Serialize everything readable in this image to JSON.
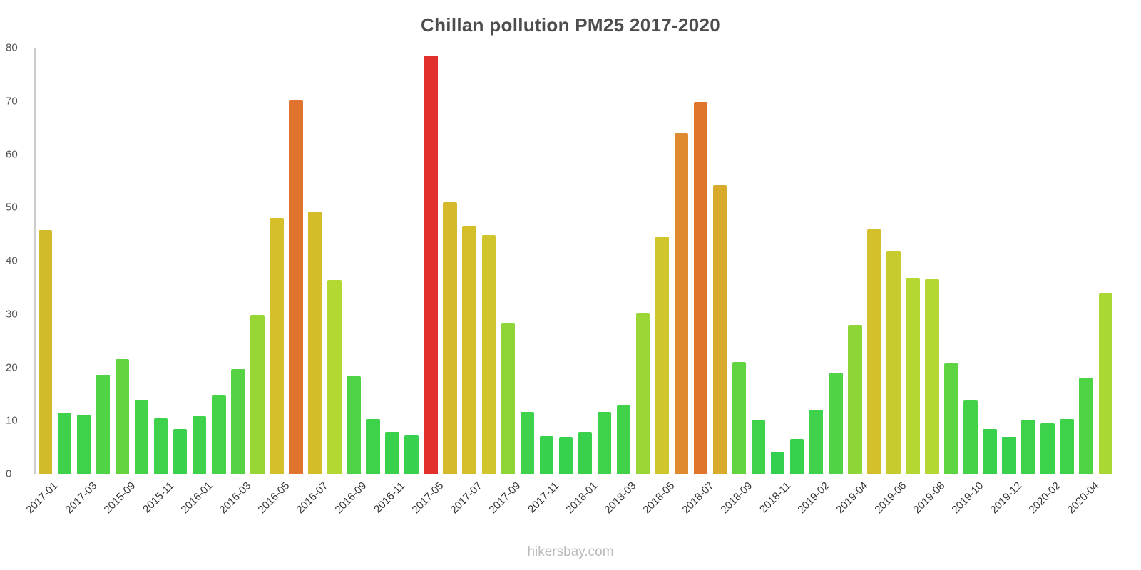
{
  "title": "Chillan pollution PM25 2017-2020",
  "footer": "hikersbay.com",
  "colors": {
    "axis_line": "#cccccc",
    "title_text": "#4d4d4d",
    "tick_text": "#555555",
    "xlabel_text": "#333333",
    "watermark_text": "#bbbbbb",
    "green": "#3ed24b",
    "yellow_green": "#aad733",
    "yellow": "#d5bf2a",
    "orange": "#e0742e",
    "red": "#e1302d"
  },
  "chart_data": {
    "type": "bar",
    "title": "Chillan pollution PM25 2017-2020",
    "xlabel": "",
    "ylabel": "",
    "ylim": [
      0,
      80
    ],
    "yticks": [
      0,
      10,
      20,
      30,
      40,
      50,
      60,
      70,
      80
    ],
    "grid": false,
    "legend": "none",
    "categories": [
      "2017-01",
      "2017-03",
      "2015-09",
      "2015-11",
      "2016-01",
      "2016-03",
      "2016-05",
      "2016-07",
      "2016-09",
      "2016-11",
      "2017-05",
      "2017-07",
      "2017-09",
      "2017-11",
      "2018-01",
      "2018-03",
      "2018-05",
      "2018-07",
      "2018-09",
      "2018-11",
      "2019-02",
      "2019-04",
      "2019-06",
      "2019-08",
      "2019-10",
      "2019-12",
      "2020-02",
      "2020-04"
    ],
    "bars": [
      {
        "label": "2017-01",
        "value": 45.7,
        "color": "#d2ba2b"
      },
      {
        "label": "",
        "value": 11.5,
        "color": "#3ed24b"
      },
      {
        "label": "2017-03",
        "value": 11.1,
        "color": "#3ed24b"
      },
      {
        "label": "",
        "value": 18.6,
        "color": "#50d345"
      },
      {
        "label": "2015-09",
        "value": 21.6,
        "color": "#65d441"
      },
      {
        "label": "",
        "value": 13.8,
        "color": "#44d249"
      },
      {
        "label": "2015-11",
        "value": 10.5,
        "color": "#3ed24b"
      },
      {
        "label": "",
        "value": 8.4,
        "color": "#39d14c"
      },
      {
        "label": "2016-01",
        "value": 10.8,
        "color": "#3ed24b"
      },
      {
        "label": "",
        "value": 14.7,
        "color": "#47d348"
      },
      {
        "label": "2016-03",
        "value": 19.7,
        "color": "#56d344"
      },
      {
        "label": "",
        "value": 29.8,
        "color": "#97d635"
      },
      {
        "label": "2016-05",
        "value": 48.1,
        "color": "#d5bf2a"
      },
      {
        "label": "",
        "value": 70.1,
        "color": "#e0742e"
      },
      {
        "label": "2016-07",
        "value": 49.2,
        "color": "#d5bd2a"
      },
      {
        "label": "",
        "value": 36.4,
        "color": "#b2d831"
      },
      {
        "label": "2016-09",
        "value": 18.4,
        "color": "#4fd346"
      },
      {
        "label": "",
        "value": 10.3,
        "color": "#3ed24b"
      },
      {
        "label": "2016-11",
        "value": 7.8,
        "color": "#39d14c"
      },
      {
        "label": "",
        "value": 7.2,
        "color": "#37d14d"
      },
      {
        "label": "2017-05",
        "value": 78.6,
        "color": "#e1302d"
      },
      {
        "label": "",
        "value": 51.0,
        "color": "#d6b92b"
      },
      {
        "label": "2017-07",
        "value": 46.5,
        "color": "#d4bf2a"
      },
      {
        "label": "",
        "value": 44.8,
        "color": "#d0c52c"
      },
      {
        "label": "2017-09",
        "value": 28.3,
        "color": "#8fd537"
      },
      {
        "label": "",
        "value": 11.7,
        "color": "#3fd24b"
      },
      {
        "label": "2017-11",
        "value": 7.1,
        "color": "#37d14d"
      },
      {
        "label": "",
        "value": 6.8,
        "color": "#36d14d"
      },
      {
        "label": "2018-01",
        "value": 7.7,
        "color": "#39d14c"
      },
      {
        "label": "",
        "value": 11.7,
        "color": "#3fd24b"
      },
      {
        "label": "2018-03",
        "value": 12.9,
        "color": "#42d24a"
      },
      {
        "label": "",
        "value": 30.2,
        "color": "#9ad635"
      },
      {
        "label": "2018-05",
        "value": 44.5,
        "color": "#cfc62c"
      },
      {
        "label": "",
        "value": 63.9,
        "color": "#df8a2f"
      },
      {
        "label": "2018-07",
        "value": 69.8,
        "color": "#e0752e"
      },
      {
        "label": "",
        "value": 54.2,
        "color": "#d9ab2d"
      },
      {
        "label": "2018-09",
        "value": 21.0,
        "color": "#61d442"
      },
      {
        "label": "",
        "value": 10.2,
        "color": "#3ed24b"
      },
      {
        "label": "2018-11",
        "value": 4.2,
        "color": "#32d04e"
      },
      {
        "label": "",
        "value": 6.5,
        "color": "#36d14d"
      },
      {
        "label": "2019-02",
        "value": 12.1,
        "color": "#40d24a"
      },
      {
        "label": "",
        "value": 19.0,
        "color": "#52d345"
      },
      {
        "label": "2019-04",
        "value": 28.0,
        "color": "#8ed537"
      },
      {
        "label": "",
        "value": 45.9,
        "color": "#d3c02b"
      },
      {
        "label": "2019-06",
        "value": 41.9,
        "color": "#c7cb2e"
      },
      {
        "label": "",
        "value": 36.8,
        "color": "#b4d831"
      },
      {
        "label": "2019-08",
        "value": 36.5,
        "color": "#b3d831"
      },
      {
        "label": "",
        "value": 20.7,
        "color": "#5ed443"
      },
      {
        "label": "2019-10",
        "value": 13.8,
        "color": "#44d249"
      },
      {
        "label": "",
        "value": 8.5,
        "color": "#39d14c"
      },
      {
        "label": "2019-12",
        "value": 7.0,
        "color": "#37d14d"
      },
      {
        "label": "",
        "value": 10.2,
        "color": "#3ed24b"
      },
      {
        "label": "2020-02",
        "value": 9.5,
        "color": "#3cd24c"
      },
      {
        "label": "",
        "value": 10.3,
        "color": "#3ed24b"
      },
      {
        "label": "2020-04",
        "value": 18.0,
        "color": "#4ed345"
      },
      {
        "label": "",
        "value": 34.0,
        "color": "#aad733"
      }
    ]
  }
}
